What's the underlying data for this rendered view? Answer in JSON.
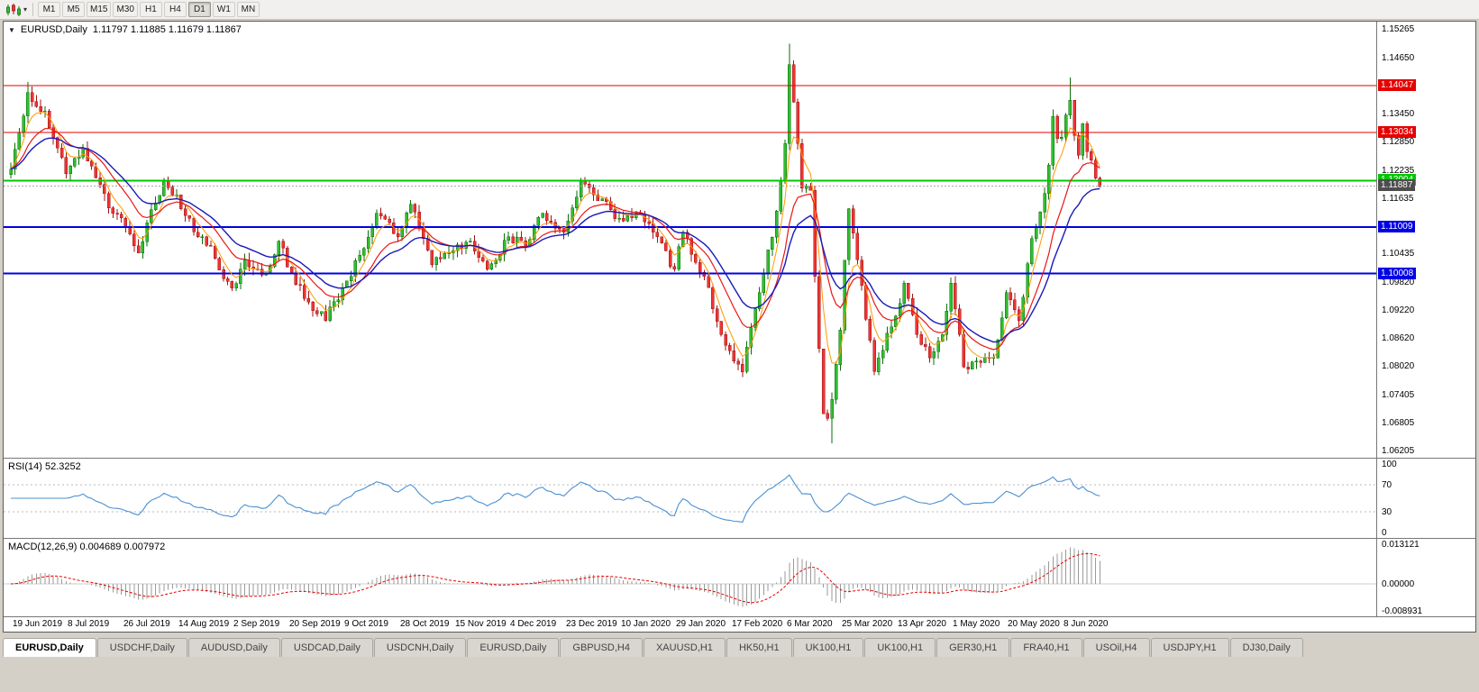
{
  "toolbar": {
    "timeframes": [
      "M1",
      "M5",
      "M15",
      "M30",
      "H1",
      "H4",
      "D1",
      "W1",
      "MN"
    ],
    "active_timeframe": "D1",
    "chart_icon": "candlestick-chart-icon",
    "dropdown_icon": "chevron-down-icon",
    "dropdown_glyph": "▾"
  },
  "chart_header": {
    "collapse_glyph": "▼",
    "symbol": "EURUSD,Daily",
    "ohlc": "1.11797 1.11885 1.11679 1.11867"
  },
  "colors": {
    "up": "#2fbf2f",
    "up_dark": "#0b6e0b",
    "down": "#f13333",
    "down_dark": "#9e1414",
    "rsi_line": "#4a90d2",
    "macd_hist": "#9a9a9a",
    "macd_signal": "#e60000"
  },
  "chart_data": {
    "type": "candlestick",
    "symbol": "EURUSD",
    "timeframe": "Daily",
    "open": "1.11797",
    "high": "1.11885",
    "low": "1.11679",
    "close": "1.11867",
    "bars": 257,
    "noise": 0.0022,
    "wick": 0.0016,
    "y_range": {
      "max": 1.15265,
      "min": 1.06205
    },
    "y_ticks": [
      "1.15265",
      "1.14650",
      "1.13450",
      "1.12850",
      "1.12235",
      "1.11635",
      "1.10435",
      "1.09820",
      "1.09220",
      "1.08620",
      "1.08020",
      "1.07405",
      "1.06805",
      "1.06205"
    ],
    "levels": [
      {
        "price": 1.14047,
        "label": "1.14047",
        "color": "#e60000",
        "width": 1
      },
      {
        "price": 1.13034,
        "label": "1.13034",
        "color": "#e60000",
        "width": 1
      },
      {
        "price": 1.12004,
        "label": "1.12004",
        "color": "#00c800",
        "width": 2
      },
      {
        "price": 1.11009,
        "label": "1.11009",
        "color": "#0000e6",
        "width": 2
      },
      {
        "price": 1.10008,
        "label": "1.10008",
        "color": "#0000e6",
        "width": 2
      }
    ],
    "current_price": {
      "price": 1.11887,
      "label": "1.11887",
      "color": "#4d4d4d"
    },
    "x_labels": [
      "19 Jun 2019",
      "8 Jul 2019",
      "26 Jul 2019",
      "14 Aug 2019",
      "2 Sep 2019",
      "20 Sep 2019",
      "9 Oct 2019",
      "28 Oct 2019",
      "15 Nov 2019",
      "4 Dec 2019",
      "23 Dec 2019",
      "10 Jan 2020",
      "29 Jan 2020",
      "17 Feb 2020",
      "6 Mar 2020",
      "25 Mar 2020",
      "13 Apr 2020",
      "1 May 2020",
      "20 May 2020",
      "8 Jun 2020"
    ],
    "label_step_bars": 13,
    "price_keypoints": [
      [
        0,
        1.1225
      ],
      [
        4,
        1.139
      ],
      [
        8,
        1.135
      ],
      [
        13,
        1.1215
      ],
      [
        17,
        1.127
      ],
      [
        24,
        1.113
      ],
      [
        26,
        1.112
      ],
      [
        30,
        1.1045
      ],
      [
        32,
        1.111
      ],
      [
        36,
        1.12
      ],
      [
        39,
        1.117
      ],
      [
        43,
        1.109
      ],
      [
        47,
        1.106
      ],
      [
        50,
        1.099
      ],
      [
        52,
        1.097
      ],
      [
        55,
        1.103
      ],
      [
        60,
        1.1
      ],
      [
        63,
        1.107
      ],
      [
        66,
        1.1
      ],
      [
        70,
        1.094
      ],
      [
        74,
        1.09
      ],
      [
        78,
        1.097
      ],
      [
        82,
        1.104
      ],
      [
        86,
        1.113
      ],
      [
        91,
        1.108
      ],
      [
        94,
        1.115
      ],
      [
        99,
        1.102
      ],
      [
        104,
        1.105
      ],
      [
        108,
        1.107
      ],
      [
        112,
        1.101
      ],
      [
        117,
        1.108
      ],
      [
        121,
        1.106
      ],
      [
        125,
        1.113
      ],
      [
        130,
        1.109
      ],
      [
        134,
        1.12
      ],
      [
        137,
        1.117
      ],
      [
        143,
        1.112
      ],
      [
        147,
        1.113
      ],
      [
        151,
        1.109
      ],
      [
        156,
        1.101
      ],
      [
        158,
        1.109
      ],
      [
        163,
        1.0995
      ],
      [
        167,
        1.087
      ],
      [
        172,
        1.079
      ],
      [
        177,
        1.1
      ],
      [
        180,
        1.1135
      ],
      [
        182,
        1.128
      ],
      [
        183,
        1.145
      ],
      [
        185,
        1.128
      ],
      [
        186,
        1.1184
      ],
      [
        188,
        1.118
      ],
      [
        189,
        1.0995
      ],
      [
        191,
        1.07
      ],
      [
        192,
        1.069
      ],
      [
        193,
        1.073
      ],
      [
        195,
        1.088
      ],
      [
        196,
        1.103
      ],
      [
        197,
        1.114
      ],
      [
        199,
        1.103
      ],
      [
        203,
        1.079
      ],
      [
        208,
        1.091
      ],
      [
        210,
        1.098
      ],
      [
        213,
        1.087
      ],
      [
        216,
        1.082
      ],
      [
        219,
        1.087
      ],
      [
        221,
        1.098
      ],
      [
        224,
        1.08
      ],
      [
        228,
        1.081
      ],
      [
        231,
        1.082
      ],
      [
        234,
        1.096
      ],
      [
        237,
        1.09
      ],
      [
        240,
        1.1076
      ],
      [
        241,
        1.11
      ],
      [
        242,
        1.1133
      ],
      [
        244,
        1.1234
      ],
      [
        245,
        1.1338
      ],
      [
        246,
        1.1291
      ],
      [
        247,
        1.1294
      ],
      [
        248,
        1.1341
      ],
      [
        249,
        1.1373
      ],
      [
        250,
        1.1298
      ],
      [
        251,
        1.1255
      ],
      [
        252,
        1.1323
      ],
      [
        253,
        1.1263
      ],
      [
        254,
        1.1244
      ],
      [
        255,
        1.1206
      ],
      [
        256,
        1.1187
      ]
    ],
    "wick_overrides": [
      [
        4,
        1.1412
      ],
      [
        183,
        1.1495
      ],
      [
        193,
        1.0636
      ],
      [
        249,
        1.1422
      ]
    ],
    "moving_averages": [
      {
        "period": 5,
        "color": "#ff9900",
        "width": 1
      },
      {
        "period": 13,
        "color": "#e81717",
        "width": 1.2
      },
      {
        "period": 21,
        "color": "#1a1ab8",
        "width": 1.4
      }
    ]
  },
  "indicators": {
    "rsi": {
      "label": "RSI(14) 52.3252",
      "period": 14,
      "value": 52.3252,
      "axis_ticks": [
        "100",
        "70",
        "30",
        "0"
      ],
      "levels": [
        70,
        30
      ],
      "range": {
        "max": 100,
        "min": 0
      }
    },
    "macd": {
      "label": "MACD(12,26,9) 0.004689 0.007972",
      "fast": 12,
      "slow": 26,
      "signal": 9,
      "macd_value": 0.004689,
      "signal_value": 0.007972,
      "axis_ticks": [
        "0.013121",
        "0.00000",
        "-0.008931"
      ],
      "range": {
        "max": 0.013121,
        "min": -0.008931
      }
    }
  },
  "tabs": {
    "items": [
      "EURUSD,Daily",
      "USDCHF,Daily",
      "AUDUSD,Daily",
      "USDCAD,Daily",
      "USDCNH,Daily",
      "EURUSD,Daily",
      "GBPUSD,H4",
      "XAUUSD,H1",
      "HK50,H1",
      "UK100,H1",
      "UK100,H1",
      "GER30,H1",
      "FRA40,H1",
      "USOil,H4",
      "USDJPY,H1",
      "DJ30,Daily"
    ],
    "active_index": 0
  }
}
